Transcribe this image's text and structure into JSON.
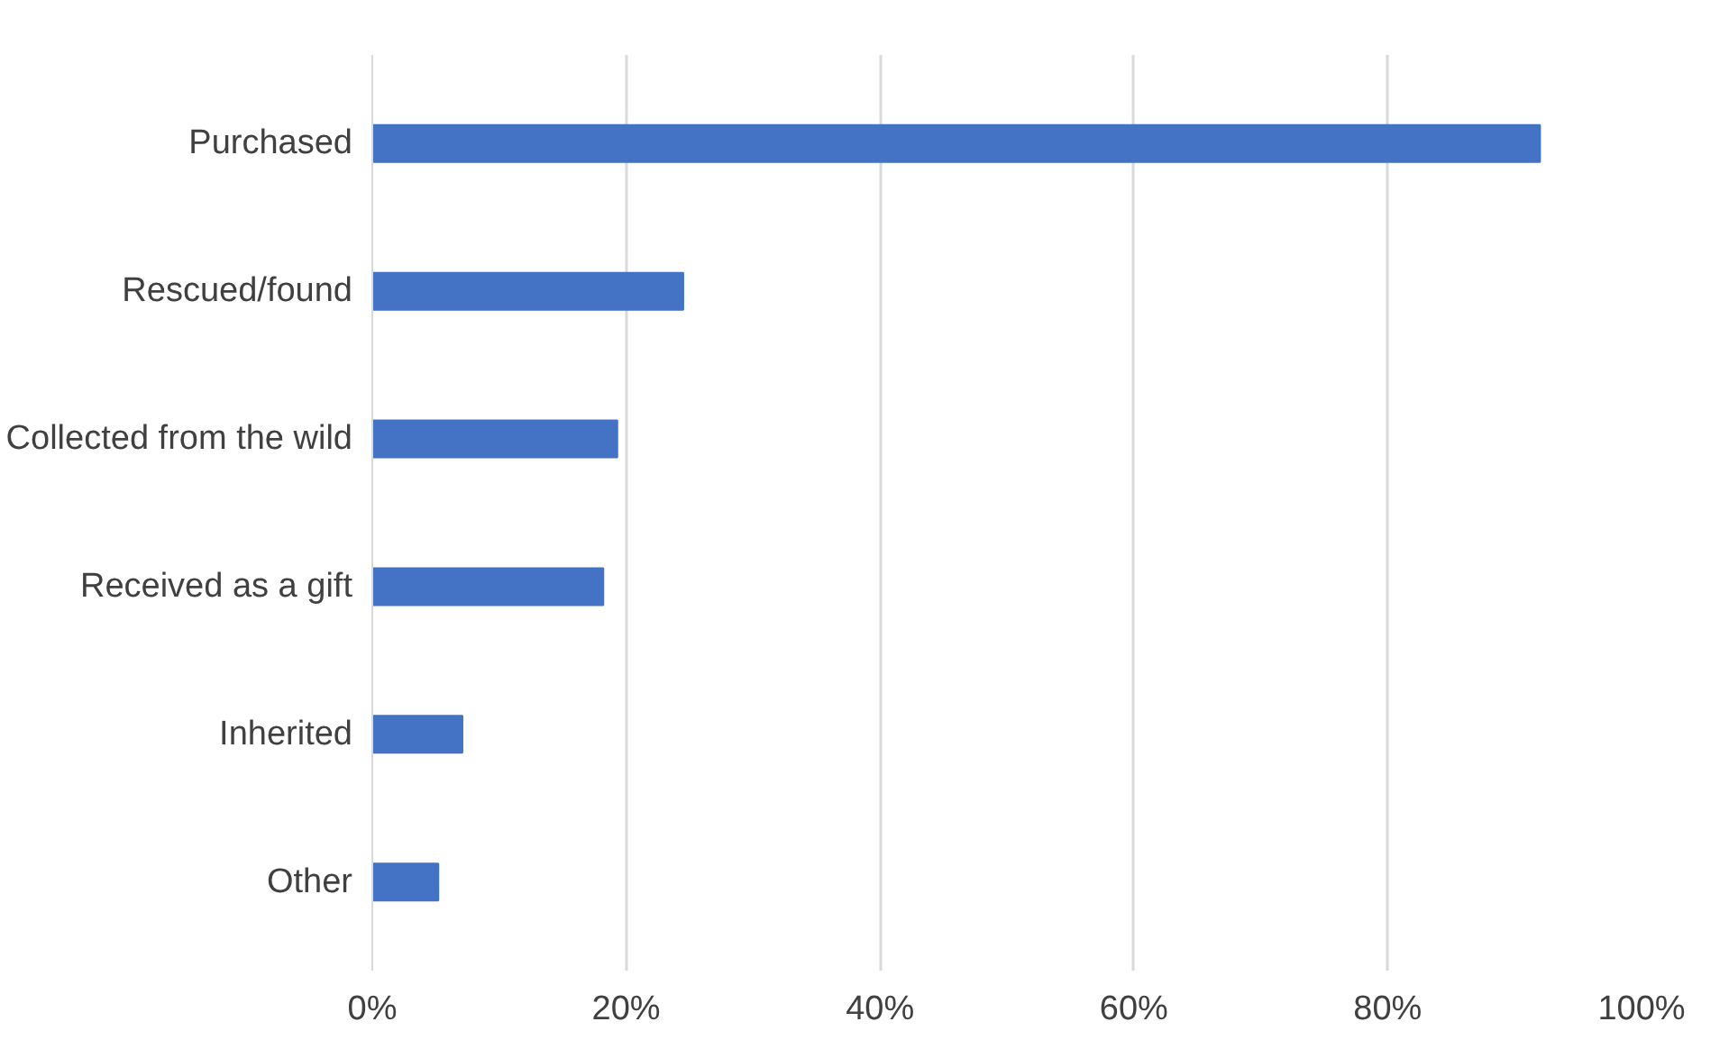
{
  "chart_data": {
    "type": "bar",
    "orientation": "horizontal",
    "categories": [
      "Purchased",
      "Rescued/found",
      "Collected from the wild",
      "Received as a gift",
      "Inherited",
      "Other"
    ],
    "values": [
      92,
      24.5,
      19.3,
      18.2,
      7.1,
      5.2
    ],
    "color": "#4472c4",
    "xlim": [
      0,
      100
    ],
    "xticks": [
      {
        "value": 0,
        "label": "0%"
      },
      {
        "value": 20,
        "label": "20%"
      },
      {
        "value": 40,
        "label": "40%"
      },
      {
        "value": 60,
        "label": "60%"
      },
      {
        "value": 80,
        "label": "80%"
      },
      {
        "value": 100,
        "label": "100%"
      }
    ],
    "grid": "x"
  }
}
